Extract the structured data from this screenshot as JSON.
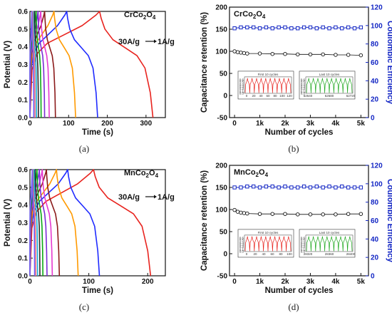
{
  "colors": {
    "gcd_series": [
      "#e8231e",
      "#1f2bff",
      "#ff9a00",
      "#8b1a1a",
      "#e639cf",
      "#7b2bd6",
      "#0aa814",
      "#2a2a2a",
      "#18b0d8",
      "#ff7a7a",
      "#6b5cff"
    ],
    "retention": "#111111",
    "efficiency": "#1326c4",
    "inset_first": "#e8231e",
    "inset_last": "#1ea81e"
  },
  "chart_data": [
    {
      "id": "a",
      "type": "line",
      "panel_label": "(a)",
      "annotation_material": "CrCo",
      "annotation_sub1": "2",
      "annotation_mid": "O",
      "annotation_sub2": "4",
      "annotation_rate_from": "30A/g",
      "annotation_rate_to": "1A/g",
      "xlabel": "Time (s)",
      "ylabel": "Potential (V)",
      "xlim": [
        0,
        350
      ],
      "ylim": [
        0,
        0.6
      ],
      "xticks": [
        "0",
        "100",
        "200",
        "300"
      ],
      "xtick_values": [
        0,
        100,
        200,
        300
      ],
      "yticks": [
        "0.0",
        "0.1",
        "0.2",
        "0.3",
        "0.4",
        "0.5",
        "0.6"
      ],
      "ytick_values": [
        0,
        0.1,
        0.2,
        0.3,
        0.4,
        0.5,
        0.6
      ],
      "series": [
        {
          "charge_end": 180,
          "discharge_end": 318
        },
        {
          "charge_end": 95,
          "discharge_end": 175
        },
        {
          "charge_end": 62,
          "discharge_end": 118
        },
        {
          "charge_end": 38,
          "discharge_end": 66
        },
        {
          "charge_end": 28,
          "discharge_end": 50
        },
        {
          "charge_end": 21,
          "discharge_end": 38
        },
        {
          "charge_end": 16,
          "discharge_end": 29
        },
        {
          "charge_end": 12,
          "discharge_end": 22
        },
        {
          "charge_end": 9,
          "discharge_end": 17
        },
        {
          "charge_end": 7,
          "discharge_end": 13
        },
        {
          "charge_end": 5,
          "discharge_end": 10
        }
      ]
    },
    {
      "id": "b",
      "type": "scatter",
      "panel_label": "(b)",
      "annotation_material": "CrCo",
      "annotation_sub1": "2",
      "annotation_mid": "O",
      "annotation_sub2": "4",
      "xlabel": "Number of cycles",
      "ylabel": "Capacitance retention (%)",
      "y2label": "Coulombic Efficiency",
      "xlim": [
        -200,
        5300
      ],
      "ylim": [
        -50,
        200
      ],
      "y2lim": [
        0,
        120
      ],
      "xticks": [
        "0",
        "1k",
        "2k",
        "3k",
        "4k",
        "5k"
      ],
      "xtick_values": [
        0,
        1000,
        2000,
        3000,
        4000,
        5000
      ],
      "yticks": [
        "-50",
        "0",
        "50",
        "100",
        "150",
        "200"
      ],
      "ytick_values": [
        -50,
        0,
        50,
        100,
        150,
        200
      ],
      "y2ticks": [
        "0",
        "20",
        "40",
        "60",
        "80",
        "100",
        "120"
      ],
      "y2tick_values": [
        0,
        20,
        40,
        60,
        80,
        100,
        120
      ],
      "retention": {
        "x": [
          0,
          125,
          250,
          375,
          500,
          1000,
          1500,
          2000,
          2500,
          3000,
          3500,
          4000,
          4500,
          5000
        ],
        "y": [
          100,
          98,
          97,
          96,
          95,
          95,
          94,
          94,
          93,
          93,
          93,
          92,
          92,
          91
        ]
      },
      "efficiency": {
        "x": [
          0,
          250,
          500,
          750,
          1000,
          1250,
          1500,
          1750,
          2000,
          2250,
          2500,
          2750,
          3000,
          3250,
          3500,
          3750,
          4000,
          4250,
          4500,
          4750,
          5000
        ],
        "y": [
          97,
          98,
          98,
          98,
          97,
          98,
          97,
          98,
          98,
          97,
          97,
          98,
          98,
          97,
          98,
          97,
          98,
          97,
          98,
          97,
          98
        ]
      },
      "inset_first": {
        "title": "First 10 cycles",
        "xticks": [
          "0",
          "20",
          "40",
          "60",
          "80",
          "100",
          "120"
        ],
        "yticks": [
          "0.0",
          "0.1",
          "0.2",
          "0.3",
          "0.4",
          "0.5",
          "0.6"
        ],
        "cycles": 10,
        "period": 13,
        "xlim": [
          0,
          130
        ]
      },
      "inset_last": {
        "title": "Last 10 cycles",
        "xticks": [
          "62640",
          "62680",
          "62720"
        ],
        "yticks": [
          "0.0",
          "0.1",
          "0.2",
          "0.3",
          "0.4",
          "0.5",
          "0.6"
        ],
        "cycles": 10,
        "period": 13,
        "xlim": [
          62610,
          62740
        ]
      }
    },
    {
      "id": "c",
      "type": "line",
      "panel_label": "(c)",
      "annotation_material": "MnCo",
      "annotation_sub1": "2",
      "annotation_mid": "O",
      "annotation_sub2": "4",
      "annotation_rate_from": "30A/g",
      "annotation_rate_to": "1A/g",
      "xlabel": "Time (s)",
      "ylabel": "Potential (V)",
      "xlim": [
        0,
        230
      ],
      "ylim": [
        0,
        0.6
      ],
      "xticks": [
        "0",
        "100",
        "200"
      ],
      "xtick_values": [
        0,
        100,
        200
      ],
      "yticks": [
        "0.0",
        "0.1",
        "0.2",
        "0.3",
        "0.4",
        "0.5",
        "0.6"
      ],
      "ytick_values": [
        0,
        0.1,
        0.2,
        0.3,
        0.4,
        0.5,
        0.6
      ],
      "series": [
        {
          "charge_end": 108,
          "discharge_end": 205
        },
        {
          "charge_end": 64,
          "discharge_end": 118
        },
        {
          "charge_end": 45,
          "discharge_end": 82
        },
        {
          "charge_end": 28,
          "discharge_end": 50
        },
        {
          "charge_end": 21,
          "discharge_end": 38
        },
        {
          "charge_end": 16,
          "discharge_end": 29
        },
        {
          "charge_end": 12,
          "discharge_end": 22
        },
        {
          "charge_end": 9,
          "discharge_end": 17
        },
        {
          "charge_end": 7,
          "discharge_end": 13
        },
        {
          "charge_end": 5,
          "discharge_end": 10
        },
        {
          "charge_end": 4,
          "discharge_end": 8
        }
      ]
    },
    {
      "id": "d",
      "type": "scatter",
      "panel_label": "(d)",
      "annotation_material": "MnCo",
      "annotation_sub1": "2",
      "annotation_mid": "O",
      "annotation_sub2": "4",
      "xlabel": "Number of cycles",
      "ylabel": "Capacitance retention (%)",
      "y2label": "Coulombic Efficiency",
      "xlim": [
        -200,
        5300
      ],
      "ylim": [
        -50,
        200
      ],
      "y2lim": [
        0,
        120
      ],
      "xticks": [
        "0",
        "1k",
        "2k",
        "3k",
        "4k",
        "5k"
      ],
      "xtick_values": [
        0,
        1000,
        2000,
        3000,
        4000,
        5000
      ],
      "yticks": [
        "-50",
        "0",
        "50",
        "100",
        "150",
        "200"
      ],
      "ytick_values": [
        -50,
        0,
        50,
        100,
        150,
        200
      ],
      "y2ticks": [
        "0",
        "20",
        "40",
        "60",
        "80",
        "100",
        "120"
      ],
      "y2tick_values": [
        0,
        20,
        40,
        60,
        80,
        100,
        120
      ],
      "retention": {
        "x": [
          0,
          125,
          250,
          375,
          500,
          1000,
          1500,
          2000,
          2500,
          3000,
          3500,
          4000,
          4500,
          5000
        ],
        "y": [
          99,
          95,
          93,
          92,
          91,
          90,
          90,
          90,
          89,
          89,
          89,
          89,
          90,
          90
        ]
      },
      "efficiency": {
        "x": [
          0,
          250,
          500,
          750,
          1000,
          1250,
          1500,
          1750,
          2000,
          2250,
          2500,
          2750,
          3000,
          3250,
          3500,
          3750,
          4000,
          4250,
          4500,
          4750,
          5000
        ],
        "y": [
          96,
          96,
          97,
          97,
          96,
          97,
          97,
          96,
          97,
          96,
          96,
          97,
          96,
          97,
          96,
          97,
          96,
          97,
          96,
          96,
          96
        ]
      },
      "inset_first": {
        "title": "First 10 cycles",
        "xticks": [
          "0",
          "20",
          "40",
          "60",
          "80",
          "100"
        ],
        "yticks": [
          "0.0",
          "0.1",
          "0.2",
          "0.3",
          "0.4",
          "0.5",
          "0.6"
        ],
        "cycles": 10,
        "period": 11,
        "xlim": [
          0,
          110
        ]
      },
      "inset_last": {
        "title": "Last 10 cycles",
        "xticks": [
          "28320",
          "28360",
          "28400"
        ],
        "yticks": [
          "0.0",
          "0.1",
          "0.2",
          "0.3",
          "0.4",
          "0.5",
          "0.6"
        ],
        "cycles": 10,
        "period": 11,
        "xlim": [
          28300,
          28410
        ]
      }
    }
  ]
}
